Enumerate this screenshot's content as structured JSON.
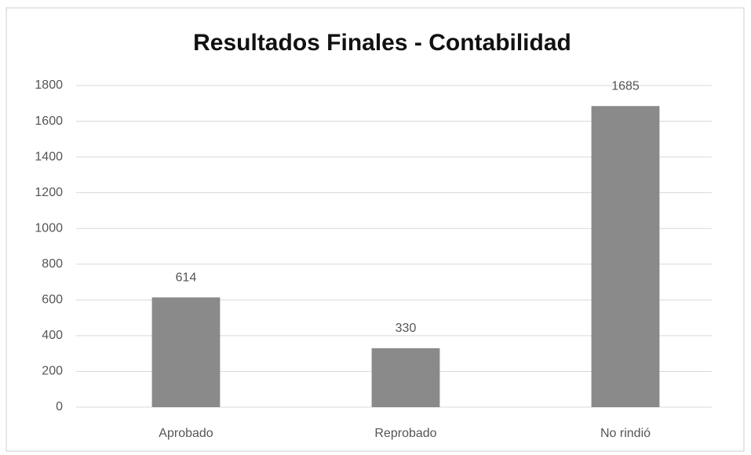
{
  "chart_data": {
    "type": "bar",
    "title": "Resultados Finales - Contabilidad",
    "categories": [
      "Aprobado",
      "Reprobado",
      "No rindió"
    ],
    "values": [
      614,
      330,
      1685
    ],
    "color": "#8a8a8a",
    "ylim": [
      0,
      1800
    ],
    "yticks": [
      0,
      200,
      400,
      600,
      800,
      1000,
      1200,
      1400,
      1600,
      1800
    ],
    "grid": true,
    "data_labels": true
  }
}
